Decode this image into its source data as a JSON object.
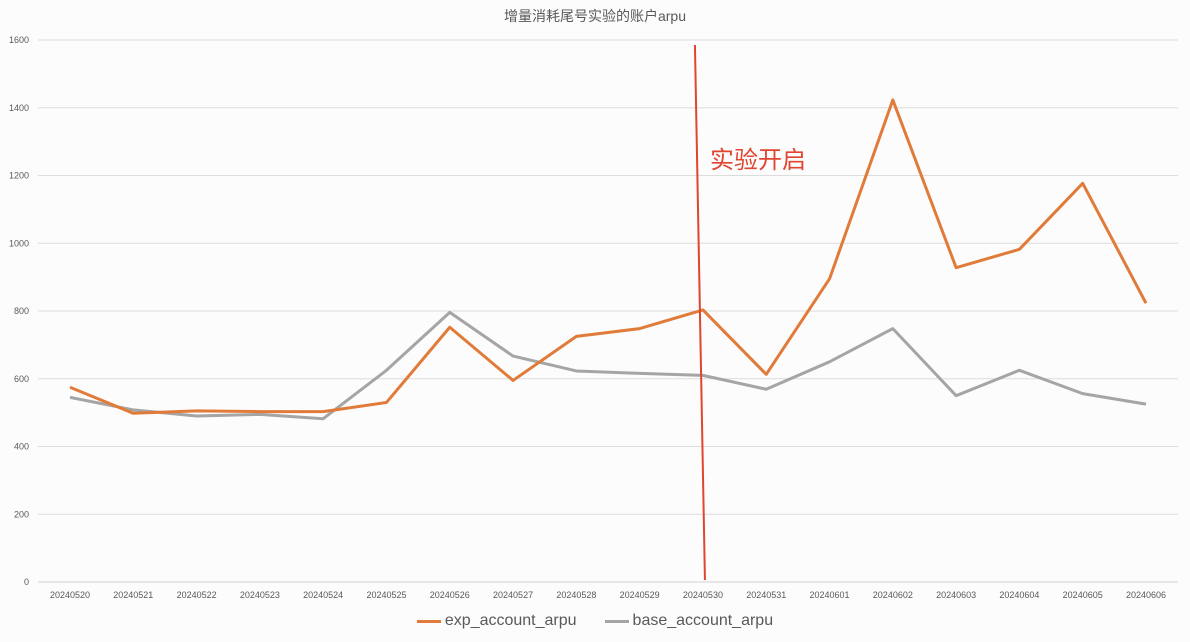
{
  "chart_data": {
    "type": "line",
    "title": "增量消耗尾号实验的账户arpu",
    "xlabel": "",
    "ylabel": "",
    "ylim": [
      0,
      1600
    ],
    "yticks": [
      0,
      200,
      400,
      600,
      800,
      1000,
      1200,
      1400,
      1600
    ],
    "grid": true,
    "legend_position": "bottom",
    "categories": [
      "20240520",
      "20240521",
      "20240522",
      "20240523",
      "20240524",
      "20240525",
      "20240526",
      "20240527",
      "20240528",
      "20240529",
      "20240530",
      "20240531",
      "20240601",
      "20240602",
      "20240603",
      "20240604",
      "20240605",
      "20240606"
    ],
    "series": [
      {
        "name": "exp_account_arpu",
        "color": "#e07b39",
        "values": [
          575,
          498,
          505,
          503,
          503,
          530,
          752,
          595,
          725,
          748,
          803,
          613,
          895,
          1423,
          928,
          982,
          1177,
          823
        ]
      },
      {
        "name": "base_account_arpu",
        "color": "#a5a5a5",
        "values": [
          545,
          508,
          490,
          495,
          482,
          625,
          796,
          667,
          623,
          616,
          610,
          569,
          650,
          748,
          550,
          625,
          556,
          525
        ]
      }
    ],
    "annotations": [
      {
        "type": "vertical-line",
        "at": "20240530",
        "color": "#e0452f",
        "label": "实验开启"
      }
    ]
  },
  "title": "增量消耗尾号实验的账户arpu",
  "annotation_label": "实验开启",
  "legend": [
    {
      "label": "exp_account_arpu",
      "color": "#e07b39"
    },
    {
      "label": "base_account_arpu",
      "color": "#a5a5a5"
    }
  ]
}
